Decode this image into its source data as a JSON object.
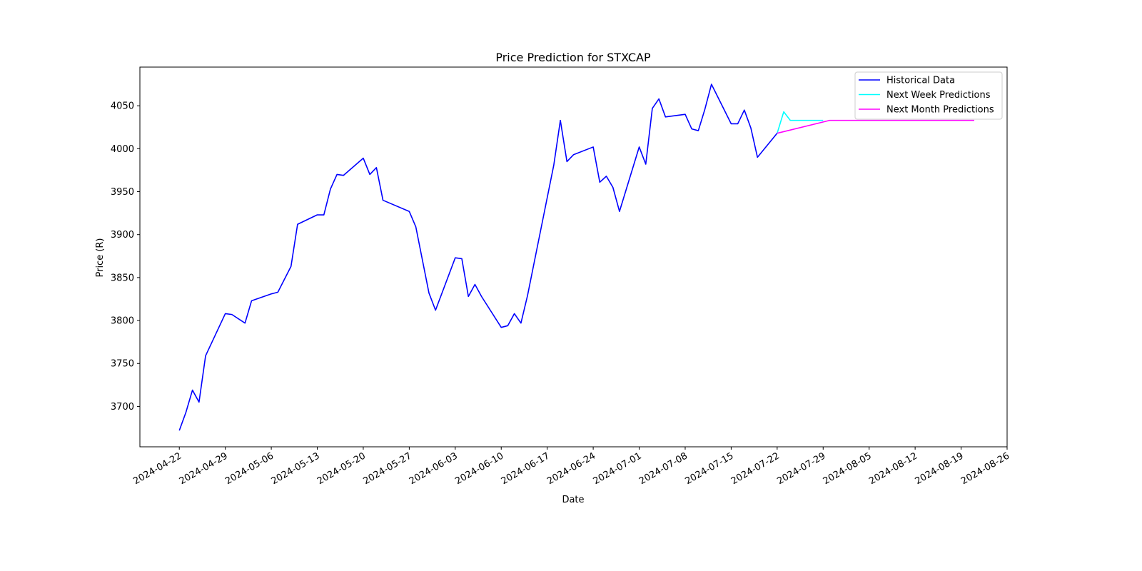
{
  "chart_data": {
    "type": "line",
    "title": "Price Prediction for STXCAP",
    "xlabel": "Date",
    "ylabel": "Price (R)",
    "xlim": [
      "2024-04-16",
      "2024-08-26"
    ],
    "ylim": [
      3653,
      4095
    ],
    "grid": false,
    "legend_position": "top-right",
    "x_ticks": [
      "2024-04-22",
      "2024-04-29",
      "2024-05-06",
      "2024-05-13",
      "2024-05-20",
      "2024-05-27",
      "2024-06-03",
      "2024-06-10",
      "2024-06-17",
      "2024-06-24",
      "2024-07-01",
      "2024-07-08",
      "2024-07-15",
      "2024-07-22",
      "2024-07-29",
      "2024-08-05",
      "2024-08-12",
      "2024-08-19",
      "2024-08-26"
    ],
    "y_ticks": [
      3700,
      3750,
      3800,
      3850,
      3900,
      3950,
      4000,
      4050
    ],
    "series": [
      {
        "name": "Historical Data",
        "color": "#0000ff",
        "points": [
          [
            "2024-04-22",
            3672
          ],
          [
            "2024-04-23",
            3693
          ],
          [
            "2024-04-24",
            3719
          ],
          [
            "2024-04-25",
            3705
          ],
          [
            "2024-04-26",
            3759
          ],
          [
            "2024-04-29",
            3808
          ],
          [
            "2024-04-30",
            3807
          ],
          [
            "2024-05-02",
            3797
          ],
          [
            "2024-05-03",
            3823
          ],
          [
            "2024-05-06",
            3831
          ],
          [
            "2024-05-07",
            3833
          ],
          [
            "2024-05-09",
            3863
          ],
          [
            "2024-05-10",
            3912
          ],
          [
            "2024-05-13",
            3923
          ],
          [
            "2024-05-14",
            3923
          ],
          [
            "2024-05-15",
            3953
          ],
          [
            "2024-05-16",
            3970
          ],
          [
            "2024-05-17",
            3969
          ],
          [
            "2024-05-20",
            3989
          ],
          [
            "2024-05-21",
            3970
          ],
          [
            "2024-05-22",
            3978
          ],
          [
            "2024-05-23",
            3940
          ],
          [
            "2024-05-27",
            3927
          ],
          [
            "2024-05-28",
            3909
          ],
          [
            "2024-05-30",
            3832
          ],
          [
            "2024-05-31",
            3812
          ],
          [
            "2024-06-03",
            3873
          ],
          [
            "2024-06-04",
            3872
          ],
          [
            "2024-06-05",
            3828
          ],
          [
            "2024-06-06",
            3842
          ],
          [
            "2024-06-07",
            3828
          ],
          [
            "2024-06-10",
            3792
          ],
          [
            "2024-06-11",
            3794
          ],
          [
            "2024-06-12",
            3808
          ],
          [
            "2024-06-13",
            3797
          ],
          [
            "2024-06-14",
            3829
          ],
          [
            "2024-06-18",
            3981
          ],
          [
            "2024-06-19",
            4033
          ],
          [
            "2024-06-20",
            3985
          ],
          [
            "2024-06-21",
            3993
          ],
          [
            "2024-06-24",
            4002
          ],
          [
            "2024-06-25",
            3961
          ],
          [
            "2024-06-26",
            3968
          ],
          [
            "2024-06-27",
            3955
          ],
          [
            "2024-06-28",
            3927
          ],
          [
            "2024-07-01",
            4002
          ],
          [
            "2024-07-02",
            3982
          ],
          [
            "2024-07-03",
            4047
          ],
          [
            "2024-07-04",
            4058
          ],
          [
            "2024-07-05",
            4037
          ],
          [
            "2024-07-08",
            4040
          ],
          [
            "2024-07-09",
            4023
          ],
          [
            "2024-07-10",
            4021
          ],
          [
            "2024-07-11",
            4046
          ],
          [
            "2024-07-12",
            4075
          ],
          [
            "2024-07-15",
            4029
          ],
          [
            "2024-07-16",
            4029
          ],
          [
            "2024-07-17",
            4045
          ],
          [
            "2024-07-18",
            4024
          ],
          [
            "2024-07-19",
            3990
          ],
          [
            "2024-07-22",
            4018
          ]
        ]
      },
      {
        "name": "Next Week Predictions",
        "color": "#00ffff",
        "points": [
          [
            "2024-07-22",
            4018
          ],
          [
            "2024-07-23",
            4043
          ],
          [
            "2024-07-24",
            4033
          ],
          [
            "2024-07-25",
            4033
          ],
          [
            "2024-07-26",
            4033
          ],
          [
            "2024-07-29",
            4033
          ]
        ]
      },
      {
        "name": "Next Month Predictions",
        "color": "#ff00ff",
        "points": [
          [
            "2024-07-22",
            4018
          ],
          [
            "2024-07-30",
            4033
          ],
          [
            "2024-08-05",
            4033
          ],
          [
            "2024-08-12",
            4033
          ],
          [
            "2024-08-19",
            4033
          ],
          [
            "2024-08-21",
            4033
          ]
        ]
      }
    ]
  }
}
